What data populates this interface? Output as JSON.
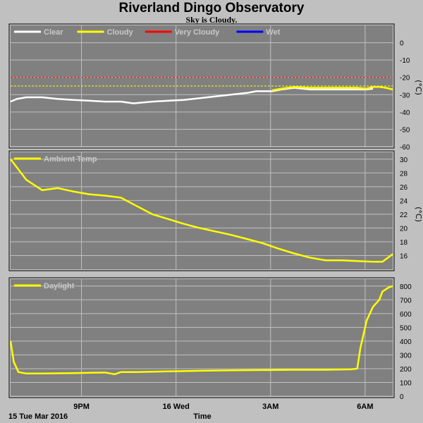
{
  "title": "Riverland Dingo Observatory",
  "subtitle": "Sky is Cloudy.",
  "colors": {
    "plot_bg": "#808080",
    "grid": "#c0c0c0",
    "page_bg": "#c0c0c0",
    "clear": "#ffffff",
    "cloudy": "#ffff00",
    "very_cloudy": "#ff0000",
    "wet": "#0000ff"
  },
  "x_axis": {
    "label": "Time",
    "start_label": "15 Tue Mar 2016",
    "ticks": [
      {
        "label": "9PM",
        "hours": 2.25
      },
      {
        "label": "16 Wed",
        "hours": 5.25
      },
      {
        "label": "3AM",
        "hours": 8.25
      },
      {
        "label": "6AM",
        "hours": 11.25
      }
    ],
    "range_hours": [
      0,
      12.125
    ]
  },
  "chart_data": [
    {
      "type": "line",
      "panel": "sky",
      "unit": "(°C)",
      "ylim": [
        -60,
        10
      ],
      "yticks": [
        0,
        -10,
        -20,
        -30,
        -40,
        -50,
        -60
      ],
      "legend": [
        "Clear",
        "Cloudy",
        "Very Cloudy",
        "Wet"
      ],
      "thresholds": [
        {
          "name": "Very Cloudy",
          "value": -20,
          "color": "#ff0000"
        },
        {
          "name": "Cloudy",
          "value": -25,
          "color": "#ffff00"
        }
      ],
      "series": [
        {
          "name": "Clear",
          "color": "#ffffff",
          "x": [
            0,
            0.2,
            0.5,
            1,
            1.5,
            2,
            2.5,
            3,
            3.5,
            3.9,
            4.5,
            5,
            5.5,
            6,
            6.5,
            7,
            7.5,
            7.8,
            8,
            8.3,
            8.6,
            9,
            9.5,
            10,
            10.5,
            11,
            11.3,
            11.5
          ],
          "y": [
            -34,
            -32.5,
            -31.5,
            -31.5,
            -32.5,
            -33,
            -33.5,
            -34,
            -34,
            -35,
            -34,
            -33.5,
            -33,
            -32,
            -31,
            -30,
            -29,
            -28,
            -28,
            -28,
            -27,
            -26,
            -27,
            -27,
            -27,
            -27,
            -27,
            -26.5
          ]
        },
        {
          "name": "Cloudy",
          "color": "#ffff00",
          "x": [
            8.3,
            8.6,
            9,
            9.5,
            10,
            10.5,
            11,
            11.3,
            11.5,
            11.7,
            11.9,
            12.125
          ],
          "y": [
            -27.5,
            -26.5,
            -25.5,
            -26,
            -26,
            -26,
            -26,
            -26.5,
            -25.5,
            -25.5,
            -26,
            -27
          ]
        }
      ]
    },
    {
      "type": "line",
      "panel": "ambient",
      "unit": "(°C)",
      "ylim": [
        14,
        31
      ],
      "yticks": [
        30,
        28,
        26,
        24,
        22,
        20,
        18,
        16
      ],
      "legend": [
        "Ambient Temp"
      ],
      "series": [
        {
          "name": "Ambient Temp",
          "color": "#ffff00",
          "x": [
            0,
            0.5,
            1,
            1.5,
            2,
            2.5,
            3,
            3.5,
            4,
            4.5,
            5,
            5.5,
            6,
            6.5,
            7,
            7.5,
            8,
            8.5,
            9,
            9.5,
            10,
            10.5,
            11,
            11.5,
            11.8,
            12.125
          ],
          "y": [
            30,
            27,
            25.5,
            25.8,
            25.3,
            24.9,
            24.7,
            24.4,
            23.2,
            22,
            21.3,
            20.6,
            20,
            19.5,
            19,
            18.4,
            17.8,
            17,
            16.3,
            15.7,
            15.3,
            15.3,
            15.2,
            15.1,
            15.1,
            16.2
          ]
        }
      ]
    },
    {
      "type": "line",
      "panel": "daylight",
      "unit": "",
      "ylim": [
        0,
        850
      ],
      "yticks": [
        800,
        700,
        600,
        500,
        400,
        300,
        200,
        100,
        0
      ],
      "legend": [
        "Daylight"
      ],
      "series": [
        {
          "name": "Daylight",
          "color": "#ffff00",
          "x": [
            0,
            0.1,
            0.25,
            0.5,
            1,
            2,
            3,
            3.3,
            3.5,
            4,
            5,
            6,
            7,
            8,
            9,
            10,
            10.8,
            11,
            11.1,
            11.3,
            11.5,
            11.7,
            11.8,
            12.0,
            12.125
          ],
          "y": [
            400,
            250,
            175,
            165,
            165,
            168,
            172,
            160,
            175,
            175,
            180,
            185,
            188,
            190,
            192,
            192,
            195,
            200,
            350,
            550,
            650,
            700,
            760,
            790,
            800
          ]
        }
      ]
    }
  ]
}
